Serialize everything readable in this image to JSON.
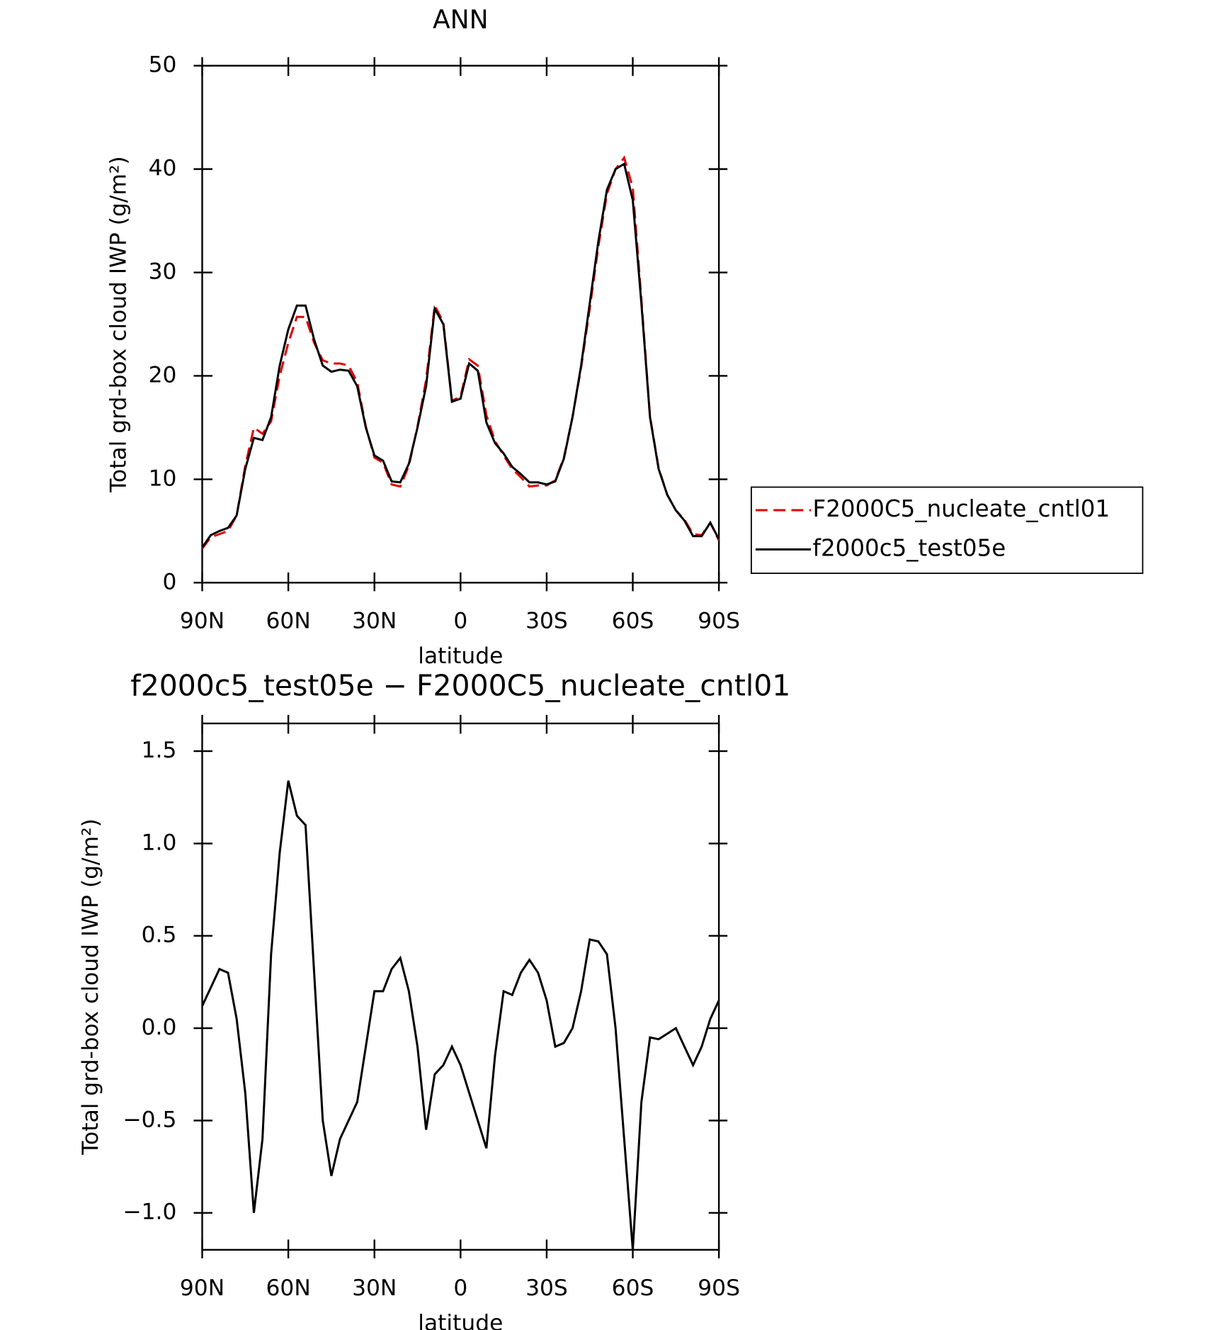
{
  "chart_data": [
    {
      "type": "line",
      "title": "ANN",
      "xlabel": "latitude",
      "ylabel": "Total grd-box cloud IWP (g/m²)",
      "x": [
        90,
        87,
        84,
        81,
        78,
        75,
        72,
        69,
        66,
        63,
        60,
        57,
        54,
        51,
        48,
        45,
        42,
        39,
        36,
        33,
        30,
        27,
        24,
        21,
        18,
        15,
        12,
        9,
        6,
        3,
        0,
        -3,
        -6,
        -9,
        -12,
        -15,
        -18,
        -21,
        -24,
        -27,
        -30,
        -33,
        -36,
        -39,
        -42,
        -45,
        -48,
        -51,
        -54,
        -57,
        -60,
        -63,
        -66,
        -69,
        -72,
        -75,
        -78,
        -81,
        -84,
        -87,
        -90
      ],
      "xlim": [
        90,
        -90
      ],
      "xticks": [
        {
          "value": 90,
          "label": "90N"
        },
        {
          "value": 60,
          "label": "60N"
        },
        {
          "value": 30,
          "label": "30N"
        },
        0,
        {
          "value": -30,
          "label": "30S"
        },
        {
          "value": -60,
          "label": "60S"
        },
        {
          "value": -90,
          "label": "90S"
        }
      ],
      "ylim": [
        0,
        50
      ],
      "yticks": [
        0,
        10,
        20,
        30,
        40,
        50
      ],
      "legend": "outside right",
      "series": [
        {
          "name": "F2000C5_nucleate_cntl01",
          "color": "#e00000",
          "dash": "dashed",
          "values": [
            3.3,
            4.4,
            4.7,
            5.0,
            6.5,
            11.3,
            15.0,
            14.4,
            15.6,
            20.0,
            23.2,
            25.7,
            25.7,
            23.2,
            21.5,
            21.2,
            21.2,
            21.0,
            19.4,
            15.1,
            12.1,
            11.6,
            9.5,
            9.3,
            11.3,
            15.1,
            19.6,
            26.8,
            25.2,
            17.6,
            18.0,
            21.6,
            21.0,
            16.2,
            13.7,
            12.3,
            11.0,
            10.2,
            9.3,
            9.4,
            9.4,
            9.9,
            12.1,
            16.0,
            20.8,
            26.5,
            32.5,
            37.6,
            40.0,
            41.1,
            38.2,
            27.4,
            16.1,
            11.1,
            8.5,
            7.0,
            6.1,
            4.7,
            4.6,
            5.8,
            4.1
          ]
        },
        {
          "name": "f2000c5_test05e",
          "color": "#000000",
          "dash": "solid",
          "values": [
            3.4,
            4.6,
            5.0,
            5.3,
            6.5,
            11.0,
            14.0,
            13.8,
            16.0,
            21.0,
            24.5,
            26.8,
            26.8,
            23.5,
            21.0,
            20.4,
            20.6,
            20.5,
            19.0,
            15.0,
            12.3,
            11.8,
            9.8,
            9.7,
            11.5,
            15.0,
            19.0,
            26.5,
            25.0,
            17.5,
            17.8,
            21.2,
            20.5,
            15.5,
            13.5,
            12.5,
            11.2,
            10.5,
            9.7,
            9.7,
            9.5,
            9.8,
            12.0,
            16.0,
            21.0,
            27.0,
            33.0,
            38.0,
            40.0,
            40.5,
            37.0,
            27.0,
            16.0,
            11.0,
            8.5,
            7.0,
            6.0,
            4.5,
            4.5,
            5.8,
            4.2
          ]
        }
      ]
    },
    {
      "type": "line",
      "title": "f2000c5_test05e − F2000C5_nucleate_cntl01",
      "xlabel": "latitude",
      "ylabel": "Total grd-box cloud IWP (g/m²)",
      "x": [
        90,
        87,
        84,
        81,
        78,
        75,
        72,
        69,
        66,
        63,
        60,
        57,
        54,
        51,
        48,
        45,
        42,
        39,
        36,
        33,
        30,
        27,
        24,
        21,
        18,
        15,
        12,
        9,
        6,
        3,
        0,
        -3,
        -6,
        -9,
        -12,
        -15,
        -18,
        -21,
        -24,
        -27,
        -30,
        -33,
        -36,
        -39,
        -42,
        -45,
        -48,
        -51,
        -54,
        -57,
        -60,
        -63,
        -66,
        -69,
        -72,
        -75,
        -78,
        -81,
        -84,
        -87,
        -90
      ],
      "xlim": [
        90,
        -90
      ],
      "xticks": [
        {
          "value": 90,
          "label": "90N"
        },
        {
          "value": 60,
          "label": "60N"
        },
        {
          "value": 30,
          "label": "30N"
        },
        0,
        {
          "value": -30,
          "label": "30S"
        },
        {
          "value": -60,
          "label": "60S"
        },
        {
          "value": -90,
          "label": "90S"
        }
      ],
      "ylim": [
        -1.2,
        1.65
      ],
      "yticks": [
        {
          "value": -1,
          "label": "−1.0"
        },
        {
          "value": -0.5,
          "label": "−0.5"
        },
        {
          "value": 0,
          "label": "0.0"
        },
        0.5,
        {
          "value": 1,
          "label": "1.0"
        },
        1.5
      ],
      "series": [
        {
          "color": "#000000",
          "dash": "solid",
          "values": [
            0.12,
            0.22,
            0.32,
            0.3,
            0.05,
            -0.35,
            -1.0,
            -0.6,
            0.4,
            0.95,
            1.34,
            1.15,
            1.1,
            0.3,
            -0.5,
            -0.8,
            -0.6,
            -0.5,
            -0.4,
            -0.1,
            0.2,
            0.2,
            0.32,
            0.38,
            0.2,
            -0.1,
            -0.55,
            -0.25,
            -0.2,
            -0.1,
            -0.2,
            -0.35,
            -0.5,
            -0.65,
            -0.15,
            0.2,
            0.18,
            0.3,
            0.37,
            0.3,
            0.15,
            -0.1,
            -0.08,
            0.0,
            0.2,
            0.48,
            0.47,
            0.4,
            0.0,
            -0.6,
            -1.2,
            -0.4,
            -0.05,
            -0.06,
            -0.03,
            0.0,
            -0.1,
            -0.2,
            -0.1,
            0.05,
            0.15
          ]
        }
      ]
    }
  ]
}
